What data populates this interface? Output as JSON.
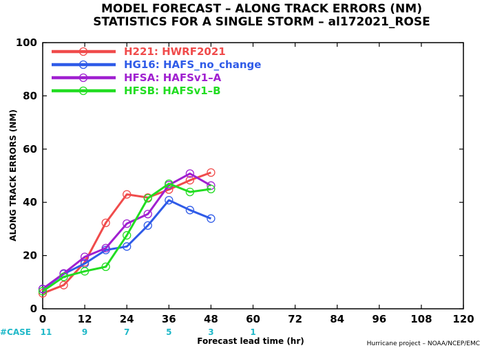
{
  "chart_data": {
    "type": "line",
    "title": "MODEL FORECAST – ALONG TRACK ERRORS (NM)",
    "subtitle": "STATISTICS FOR A SINGLE STORM – al172021_ROSE",
    "xlabel": "Forecast lead time (hr)",
    "ylabel": "ALONG TRACK ERRORS (NM)",
    "xlim": [
      0,
      120
    ],
    "ylim": [
      0,
      100
    ],
    "xticks": [
      "0",
      "12",
      "24",
      "36",
      "48",
      "60",
      "72",
      "84",
      "96",
      "108",
      "120"
    ],
    "yticks": [
      "0",
      "20",
      "40",
      "60",
      "80",
      "100"
    ],
    "grid": false,
    "legend_position": "top-left",
    "series": [
      {
        "name": "H221: HWRF2021",
        "color": "#f04b4b",
        "x": [
          0,
          6,
          12,
          18,
          24,
          30,
          36,
          42,
          48
        ],
        "y": [
          5.8,
          8.9,
          17.5,
          32.3,
          43.0,
          41.8,
          44.8,
          48.3,
          51.2
        ]
      },
      {
        "name": "HG16: HAFS_no_change",
        "color": "#2f5be8",
        "x": [
          0,
          6,
          12,
          18,
          24,
          30,
          36,
          42,
          48
        ],
        "y": [
          7.4,
          13.1,
          17.0,
          22.1,
          23.4,
          31.3,
          40.8,
          37.1,
          33.9
        ]
      },
      {
        "name": "HFSA: HAFSv1–A",
        "color": "#a020d0",
        "x": [
          0,
          6,
          12,
          18,
          24,
          30,
          36,
          42,
          48
        ],
        "y": [
          7.5,
          13.3,
          19.5,
          22.8,
          32.0,
          35.6,
          46.5,
          50.8,
          46.3
        ]
      },
      {
        "name": "HFSB: HAFSv1–B",
        "color": "#22dd22",
        "x": [
          0,
          6,
          12,
          18,
          24,
          30,
          36,
          42,
          48
        ],
        "y": [
          6.6,
          12.0,
          14.1,
          15.8,
          27.6,
          41.5,
          47.0,
          43.9,
          45.0
        ]
      }
    ],
    "case_label": "#CASE",
    "cases": [
      {
        "x": 0,
        "n": "11"
      },
      {
        "x": 12,
        "n": "9"
      },
      {
        "x": 24,
        "n": "7"
      },
      {
        "x": 36,
        "n": "5"
      },
      {
        "x": 48,
        "n": "3"
      },
      {
        "x": 60,
        "n": "1"
      }
    ],
    "case_color": "#1fb8c8",
    "credit": "Hurricane project – NOAA/NCEP/EMC"
  }
}
